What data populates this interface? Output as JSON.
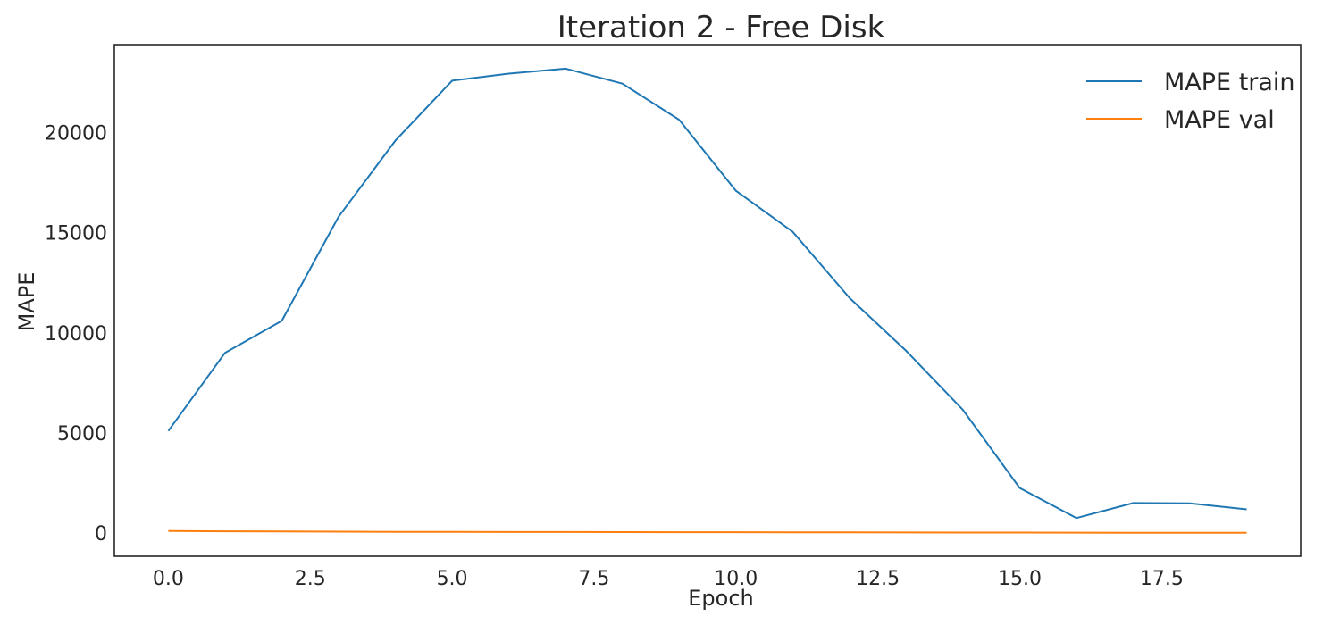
{
  "chart_data": {
    "type": "line",
    "title": "Iteration 2 - Free Disk",
    "xlabel": "Epoch",
    "ylabel": "MAPE",
    "xlim": [
      -0.95,
      19.95
    ],
    "ylim": [
      -1160,
      24400
    ],
    "xticks": [
      0,
      2.5,
      5,
      7.5,
      10,
      12.5,
      15,
      17.5
    ],
    "xtick_labels": [
      "0.0",
      "2.5",
      "5.0",
      "7.5",
      "10.0",
      "12.5",
      "15.0",
      "17.5"
    ],
    "yticks": [
      0,
      5000,
      10000,
      15000,
      20000
    ],
    "ytick_labels": [
      "0",
      "5000",
      "10000",
      "15000",
      "20000"
    ],
    "grid": false,
    "legend_position": "top-right",
    "x": [
      0,
      1,
      2,
      3,
      4,
      5,
      6,
      7,
      8,
      9,
      10,
      11,
      12,
      13,
      14,
      15,
      16,
      17,
      18,
      19
    ],
    "series": [
      {
        "name": "MAPE train",
        "color": "#1f77b4",
        "values": [
          5100,
          9000,
          10600,
          15800,
          19600,
          22600,
          22950,
          23200,
          22450,
          20650,
          17100,
          15050,
          11750,
          9100,
          6150,
          2250,
          750,
          1500,
          1480,
          1180
        ]
      },
      {
        "name": "MAPE val",
        "color": "#ff7f0e",
        "values": [
          100,
          85,
          75,
          68,
          60,
          55,
          50,
          47,
          44,
          41,
          38,
          35,
          32,
          28,
          24,
          20,
          17,
          15,
          12,
          10
        ]
      }
    ]
  }
}
